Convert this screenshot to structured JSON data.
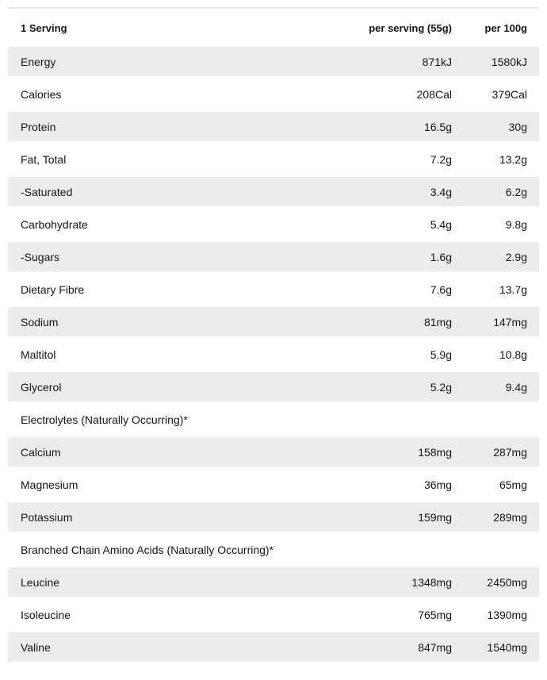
{
  "nutrition_table": {
    "header": {
      "serving_label": "1 Serving",
      "per_serving_label": "per serving (55g)",
      "per_100g_label": "per 100g"
    },
    "rows": [
      {
        "type": "data",
        "label": "Energy",
        "per_serving": "871kJ",
        "per_100g": "1580kJ"
      },
      {
        "type": "data",
        "label": "Calories",
        "per_serving": "208Cal",
        "per_100g": "379Cal"
      },
      {
        "type": "data",
        "label": "Protein",
        "per_serving": "16.5g",
        "per_100g": "30g"
      },
      {
        "type": "data",
        "label": "Fat, Total",
        "per_serving": "7.2g",
        "per_100g": "13.2g"
      },
      {
        "type": "data",
        "label": "-Saturated",
        "per_serving": "3.4g",
        "per_100g": "6.2g"
      },
      {
        "type": "data",
        "label": "Carbohydrate",
        "per_serving": "5.4g",
        "per_100g": "9.8g"
      },
      {
        "type": "data",
        "label": "-Sugars",
        "per_serving": "1.6g",
        "per_100g": "2.9g"
      },
      {
        "type": "data",
        "label": "Dietary Fibre",
        "per_serving": "7.6g",
        "per_100g": "13.7g"
      },
      {
        "type": "data",
        "label": "Sodium",
        "per_serving": "81mg",
        "per_100g": "147mg"
      },
      {
        "type": "data",
        "label": "Maltitol",
        "per_serving": "5.9g",
        "per_100g": "10.8g"
      },
      {
        "type": "data",
        "label": "Glycerol",
        "per_serving": "5.2g",
        "per_100g": "9.4g"
      },
      {
        "type": "section",
        "label": "Electrolytes (Naturally Occurring)*"
      },
      {
        "type": "data",
        "label": "Calcium",
        "per_serving": "158mg",
        "per_100g": "287mg"
      },
      {
        "type": "data",
        "label": "Magnesium",
        "per_serving": "36mg",
        "per_100g": "65mg"
      },
      {
        "type": "data",
        "label": "Potassium",
        "per_serving": "159mg",
        "per_100g": "289mg"
      },
      {
        "type": "section",
        "label": "Branched Chain Amino Acids (Naturally Occurring)*"
      },
      {
        "type": "data",
        "label": "Leucine",
        "per_serving": "1348mg",
        "per_100g": "2450mg"
      },
      {
        "type": "data",
        "label": "Isoleucine",
        "per_serving": "765mg",
        "per_100g": "1390mg"
      },
      {
        "type": "data",
        "label": "Valine",
        "per_serving": "847mg",
        "per_100g": "1540mg"
      }
    ]
  },
  "colors": {
    "row_stripe": "#ececec",
    "divider": "#e8e8ed",
    "text": "#151515"
  }
}
